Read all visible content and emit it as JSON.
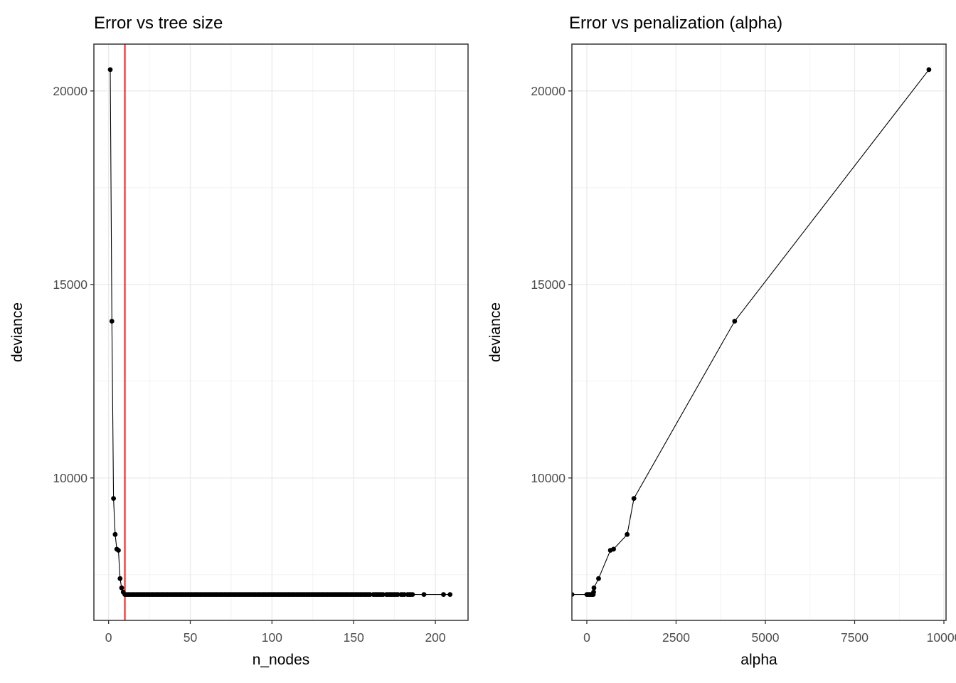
{
  "figure": {
    "background": "#FFFFFF"
  },
  "theme": {
    "panel_background": "#FFFFFF",
    "panel_border": "#333333",
    "grid_major": "#EBEBEB",
    "grid_minor": "#F1F1F1",
    "tick_mark": "#333333",
    "tick_label_color": "#4D4D4D",
    "title_color": "#000000",
    "point_color": "#000000",
    "line_color": "#000000",
    "vline_color": "#FF0000"
  },
  "chart_data": [
    {
      "type": "line",
      "title": "Error vs tree size",
      "xlabel": "n_nodes",
      "ylabel": "deviance",
      "x_ticks": [
        0,
        50,
        100,
        150,
        200
      ],
      "y_ticks": [
        10000,
        15000,
        20000
      ],
      "xlim": [
        -9,
        220
      ],
      "ylim": [
        6320,
        21210
      ],
      "grid": true,
      "legend": "none",
      "vline": {
        "x": 10,
        "color": "#FF0000"
      },
      "series": {
        "head_points": [
          [
            1,
            20550
          ],
          [
            2,
            14050
          ],
          [
            3,
            9470
          ],
          [
            4,
            8540
          ],
          [
            5,
            8160
          ],
          [
            6,
            8130
          ],
          [
            7,
            7400
          ],
          [
            8,
            7160
          ],
          [
            9,
            7050
          ]
        ],
        "flat_deviance": 6990,
        "flat_dense_node_range": [
          10,
          160
        ],
        "flat_sparse_nodes": [
          162,
          163,
          164,
          165,
          166,
          167,
          168,
          170,
          171,
          172,
          173,
          174,
          175,
          176,
          177,
          179,
          180,
          181,
          183,
          184,
          185,
          186,
          193,
          205,
          209
        ]
      }
    },
    {
      "type": "line",
      "title": "Error vs penalization (alpha)",
      "xlabel": "alpha",
      "ylabel": "deviance",
      "x_ticks": [
        0,
        2500,
        5000,
        7500,
        10000
      ],
      "y_ticks": [
        10000,
        15000,
        20000
      ],
      "xlim": [
        -418,
        10060
      ],
      "ylim": [
        6320,
        21210
      ],
      "grid": true,
      "legend": "none",
      "series": {
        "points": [
          [
            -418,
            6990
          ],
          [
            0,
            6990
          ],
          [
            30,
            6990
          ],
          [
            60,
            6990
          ],
          [
            90,
            6990
          ],
          [
            120,
            6990
          ],
          [
            150,
            6990
          ],
          [
            180,
            6990
          ],
          [
            190,
            7050
          ],
          [
            200,
            7160
          ],
          [
            330,
            7400
          ],
          [
            660,
            8130
          ],
          [
            750,
            8160
          ],
          [
            1130,
            8540
          ],
          [
            1320,
            9470
          ],
          [
            4140,
            14050
          ],
          [
            9580,
            20550
          ]
        ]
      }
    }
  ]
}
